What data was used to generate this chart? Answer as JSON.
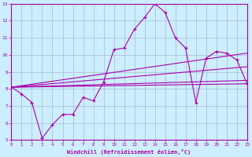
{
  "xlabel": "Windchill (Refroidissement éolien,°C)",
  "bg_color": "#cceeff",
  "line_color": "#aa00aa",
  "grid_color": "#aabbcc",
  "x_data": [
    0,
    1,
    2,
    3,
    4,
    5,
    6,
    7,
    8,
    9,
    10,
    11,
    12,
    13,
    14,
    15,
    16,
    17,
    18,
    19,
    20,
    21,
    22,
    23
  ],
  "y_main": [
    8.1,
    7.7,
    7.2,
    5.1,
    5.9,
    6.5,
    6.5,
    7.5,
    7.3,
    8.4,
    10.3,
    10.4,
    11.5,
    12.2,
    13.0,
    12.5,
    11.0,
    10.4,
    7.2,
    9.8,
    10.2,
    10.1,
    9.7,
    8.3
  ],
  "reg_lines": [
    {
      "x0": 0,
      "y0": 8.1,
      "x1": 23,
      "y1": 10.1
    },
    {
      "x0": 0,
      "y0": 8.1,
      "x1": 23,
      "y1": 9.3
    },
    {
      "x0": 0,
      "y0": 8.1,
      "x1": 23,
      "y1": 8.5
    },
    {
      "x0": 0,
      "y0": 8.1,
      "x1": 23,
      "y1": 8.3
    }
  ],
  "xlim": [
    0,
    23
  ],
  "ylim": [
    5,
    13
  ],
  "xticks": [
    0,
    1,
    2,
    3,
    4,
    5,
    6,
    7,
    8,
    9,
    10,
    11,
    12,
    13,
    14,
    15,
    16,
    17,
    18,
    19,
    20,
    21,
    22,
    23
  ],
  "yticks": [
    5,
    6,
    7,
    8,
    9,
    10,
    11,
    12,
    13
  ]
}
